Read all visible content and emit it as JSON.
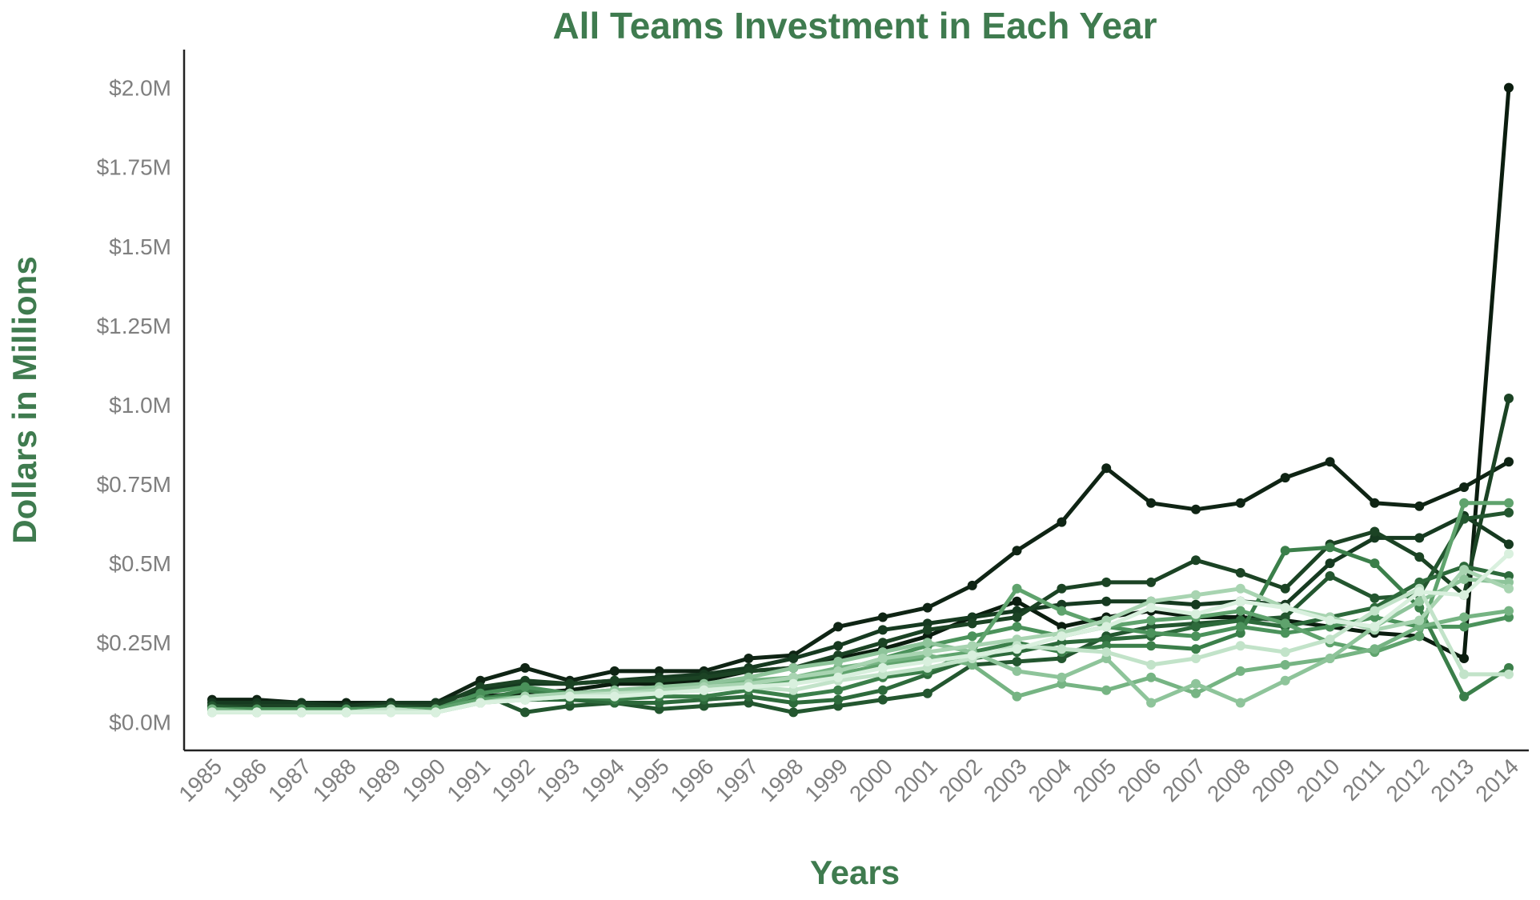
{
  "colors": {
    "title": "#3f7b4f",
    "axis_label": "#3f7b4f",
    "tick": "#7f7f7f",
    "axis_line": "#222222",
    "palette": [
      "#0b1d0f",
      "#12301a",
      "#1b4324",
      "#23562f",
      "#2d6a3b",
      "#3b7f4a",
      "#4b925b",
      "#5fa36d",
      "#76b483",
      "#8ec49a",
      "#a8d4b1",
      "#c2e3c9",
      "#d9f0de"
    ]
  },
  "chart_data": {
    "type": "line",
    "title": "All Teams Investment in Each Year",
    "xlabel": "Years",
    "ylabel": "Dollars in Millions",
    "x": [
      1985,
      1986,
      1987,
      1988,
      1989,
      1990,
      1991,
      1992,
      1993,
      1994,
      1995,
      1996,
      1997,
      1998,
      1999,
      2000,
      2001,
      2002,
      2003,
      2004,
      2005,
      2006,
      2007,
      2008,
      2009,
      2010,
      2011,
      2012,
      2013,
      2014
    ],
    "x_tick_labels": [
      "1985",
      "1986",
      "1987",
      "1988",
      "1989",
      "1990",
      "1991",
      "1992",
      "1993",
      "1994",
      "1995",
      "1996",
      "1997",
      "1998",
      "1999",
      "2000",
      "2001",
      "2002",
      "2003",
      "2004",
      "2005",
      "2006",
      "2007",
      "2008",
      "2009",
      "2010",
      "2011",
      "2012",
      "2013",
      "2014"
    ],
    "ylim": [
      -0.09,
      2.12
    ],
    "y_ticks": [
      0.0,
      0.25,
      0.5,
      0.75,
      1.0,
      1.25,
      1.5,
      1.75,
      2.0
    ],
    "y_tick_labels": [
      "$0.0M",
      "$0.25M",
      "$0.5M",
      "$0.75M",
      "$1.0M",
      "$1.25M",
      "$1.5M",
      "$1.75M",
      "$2.0M"
    ],
    "grid": false,
    "series": [
      {
        "color": "#0f2414",
        "values": [
          0.07,
          0.07,
          0.06,
          0.06,
          0.06,
          0.06,
          0.13,
          0.17,
          0.13,
          0.16,
          0.16,
          0.16,
          0.2,
          0.21,
          0.3,
          0.33,
          0.36,
          0.43,
          0.54,
          0.63,
          0.8,
          0.69,
          0.67,
          0.69,
          0.77,
          0.82,
          0.69,
          0.68,
          0.74,
          0.82
        ]
      },
      {
        "color": "#0b1d0f",
        "values": [
          0.05,
          0.05,
          0.04,
          0.04,
          0.05,
          0.05,
          0.08,
          0.09,
          0.1,
          0.12,
          0.12,
          0.13,
          0.16,
          0.17,
          0.2,
          0.23,
          0.27,
          0.33,
          0.38,
          0.3,
          0.33,
          0.35,
          0.33,
          0.33,
          0.32,
          0.3,
          0.28,
          0.27,
          0.2,
          2.0
        ]
      },
      {
        "color": "#163a20",
        "values": [
          0.06,
          0.06,
          0.06,
          0.05,
          0.06,
          0.06,
          0.1,
          0.12,
          0.12,
          0.13,
          0.14,
          0.15,
          0.17,
          0.2,
          0.24,
          0.29,
          0.31,
          0.33,
          0.35,
          0.37,
          0.38,
          0.38,
          0.37,
          0.38,
          0.37,
          0.5,
          0.58,
          0.58,
          0.65,
          0.56
        ]
      },
      {
        "color": "#1b4324",
        "values": [
          0.05,
          0.05,
          0.05,
          0.04,
          0.05,
          0.05,
          0.11,
          0.13,
          0.12,
          0.13,
          0.13,
          0.14,
          0.16,
          0.17,
          0.21,
          0.25,
          0.29,
          0.31,
          0.33,
          0.42,
          0.44,
          0.44,
          0.51,
          0.47,
          0.42,
          0.56,
          0.6,
          0.52,
          0.4,
          1.02
        ]
      },
      {
        "color": "#23562f",
        "values": [
          0.05,
          0.04,
          0.04,
          0.04,
          0.05,
          0.04,
          0.09,
          0.03,
          0.05,
          0.06,
          0.04,
          0.05,
          0.06,
          0.03,
          0.05,
          0.07,
          0.09,
          0.18,
          0.19,
          0.2,
          0.27,
          0.3,
          0.31,
          0.32,
          0.33,
          0.46,
          0.39,
          0.4,
          0.64,
          0.66
        ]
      },
      {
        "color": "#2d6a3b",
        "values": [
          0.04,
          0.04,
          0.04,
          0.04,
          0.04,
          0.04,
          0.08,
          0.07,
          0.07,
          0.06,
          0.06,
          0.07,
          0.08,
          0.06,
          0.07,
          0.1,
          0.15,
          0.2,
          0.22,
          0.25,
          0.26,
          0.27,
          0.3,
          0.32,
          0.3,
          0.33,
          0.36,
          0.44,
          0.49,
          0.46
        ]
      },
      {
        "color": "#3b7f4a",
        "values": [
          0.04,
          0.04,
          0.04,
          0.04,
          0.04,
          0.04,
          0.07,
          0.1,
          0.08,
          0.07,
          0.08,
          0.08,
          0.1,
          0.08,
          0.1,
          0.14,
          0.16,
          0.22,
          0.25,
          0.22,
          0.24,
          0.24,
          0.23,
          0.28,
          0.54,
          0.55,
          0.5,
          0.36,
          0.08,
          0.17
        ]
      },
      {
        "color": "#4b925b",
        "values": [
          0.04,
          0.04,
          0.04,
          0.04,
          0.04,
          0.04,
          0.09,
          0.11,
          0.09,
          0.1,
          0.1,
          0.11,
          0.12,
          0.13,
          0.16,
          0.2,
          0.24,
          0.27,
          0.3,
          0.27,
          0.3,
          0.28,
          0.27,
          0.3,
          0.28,
          0.3,
          0.33,
          0.3,
          0.3,
          0.33
        ]
      },
      {
        "color": "#5fa36d",
        "values": [
          0.04,
          0.03,
          0.03,
          0.03,
          0.04,
          0.04,
          0.07,
          0.08,
          0.09,
          0.09,
          0.1,
          0.1,
          0.11,
          0.13,
          0.15,
          0.18,
          0.2,
          0.22,
          0.42,
          0.35,
          0.3,
          0.32,
          0.33,
          0.35,
          0.31,
          0.25,
          0.22,
          0.27,
          0.69,
          0.69
        ]
      },
      {
        "color": "#76b483",
        "values": [
          0.04,
          0.03,
          0.03,
          0.03,
          0.04,
          0.03,
          0.06,
          0.08,
          0.08,
          0.09,
          0.1,
          0.11,
          0.13,
          0.14,
          0.17,
          0.19,
          0.21,
          0.18,
          0.08,
          0.12,
          0.1,
          0.14,
          0.09,
          0.16,
          0.18,
          0.2,
          0.23,
          0.3,
          0.33,
          0.35
        ]
      },
      {
        "color": "#8ec49a",
        "values": [
          0.03,
          0.03,
          0.03,
          0.03,
          0.04,
          0.03,
          0.06,
          0.07,
          0.09,
          0.1,
          0.11,
          0.12,
          0.14,
          0.17,
          0.19,
          0.22,
          0.25,
          0.22,
          0.16,
          0.14,
          0.2,
          0.06,
          0.12,
          0.06,
          0.13,
          0.2,
          0.3,
          0.38,
          0.45,
          0.44
        ]
      },
      {
        "color": "#a8d4b1",
        "values": [
          0.03,
          0.03,
          0.03,
          0.03,
          0.03,
          0.03,
          0.06,
          0.08,
          0.09,
          0.09,
          0.1,
          0.11,
          0.12,
          0.14,
          0.16,
          0.2,
          0.22,
          0.24,
          0.26,
          0.28,
          0.32,
          0.38,
          0.4,
          0.42,
          0.36,
          0.33,
          0.29,
          0.32,
          0.48,
          0.42
        ]
      },
      {
        "color": "#c2e3c9",
        "values": [
          0.03,
          0.03,
          0.03,
          0.03,
          0.04,
          0.03,
          0.06,
          0.07,
          0.08,
          0.09,
          0.09,
          0.1,
          0.11,
          0.1,
          0.13,
          0.15,
          0.17,
          0.2,
          0.24,
          0.23,
          0.22,
          0.18,
          0.2,
          0.24,
          0.22,
          0.26,
          0.35,
          0.42,
          0.15,
          0.15
        ]
      },
      {
        "color": "#d9f0de",
        "values": [
          0.03,
          0.03,
          0.03,
          0.03,
          0.03,
          0.03,
          0.06,
          0.07,
          0.08,
          0.08,
          0.09,
          0.1,
          0.11,
          0.12,
          0.14,
          0.17,
          0.19,
          0.21,
          0.23,
          0.27,
          0.3,
          0.36,
          0.34,
          0.38,
          0.36,
          0.32,
          0.3,
          0.41,
          0.4,
          0.53
        ]
      }
    ]
  }
}
